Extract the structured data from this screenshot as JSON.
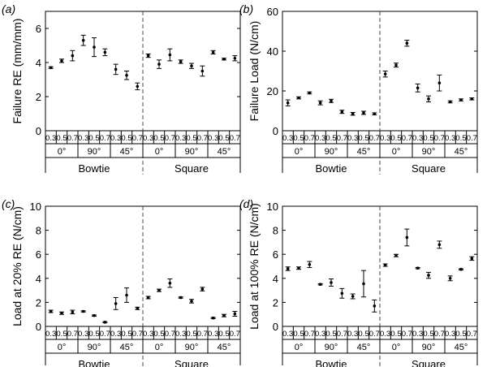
{
  "chart_data": [
    {
      "type": "scatter",
      "panel_label": "(a)",
      "ylabel": "Failure RE (mm/mm)",
      "ylim": [
        0,
        7
      ],
      "yticks": [
        "0",
        "2",
        "4",
        "6"
      ],
      "yticks_values": [
        0,
        2,
        4,
        6
      ],
      "xlabel": "",
      "levels": [
        "0.3",
        "0.5",
        "0.7"
      ],
      "angles": [
        "0°",
        "90°",
        "45°"
      ],
      "groups": [
        "Bowtie",
        "Square"
      ],
      "series": [
        {
          "name": "Bowtie",
          "values": [
            3.7,
            4.1,
            4.4,
            5.3,
            4.9,
            4.6,
            3.6,
            3.25,
            2.6
          ],
          "errors": [
            0.05,
            0.1,
            0.3,
            0.3,
            0.55,
            0.2,
            0.3,
            0.25,
            0.2
          ]
        },
        {
          "name": "Square",
          "values": [
            4.4,
            3.9,
            4.45,
            4.05,
            3.8,
            3.5,
            4.6,
            4.2,
            4.25
          ],
          "errors": [
            0.1,
            0.25,
            0.35,
            0.1,
            0.15,
            0.3,
            0.1,
            0.05,
            0.15
          ]
        }
      ]
    },
    {
      "type": "scatter",
      "panel_label": "(b)",
      "ylabel": "Failure Load (N/cm)",
      "ylim": [
        0,
        60
      ],
      "yticks": [
        "0",
        "20",
        "40",
        "60"
      ],
      "yticks_values": [
        0,
        20,
        40,
        60
      ],
      "xlabel": "",
      "levels": [
        "0.3",
        "0.5",
        "0.7"
      ],
      "angles": [
        "0°",
        "90°",
        "45°"
      ],
      "groups": [
        "Bowtie",
        "Square"
      ],
      "series": [
        {
          "name": "Bowtie",
          "values": [
            14,
            16.5,
            19,
            14,
            15,
            9.5,
            8.5,
            9,
            8.5
          ],
          "errors": [
            1.5,
            0.5,
            0.5,
            1,
            0.8,
            0.8,
            0.7,
            0.8,
            0.5
          ]
        },
        {
          "name": "Square",
          "values": [
            28.5,
            33,
            44,
            21.5,
            16,
            24,
            14.5,
            15.5,
            16
          ],
          "errors": [
            1.5,
            1,
            1.5,
            2,
            1.5,
            4,
            0.5,
            0.5,
            0.5
          ]
        }
      ]
    },
    {
      "type": "scatter",
      "panel_label": "(c)",
      "ylabel": "Load at 20% RE (N/cm)",
      "ylim": [
        0,
        10
      ],
      "yticks": [
        "0",
        "2",
        "4",
        "6",
        "8",
        "10"
      ],
      "yticks_values": [
        0,
        2,
        4,
        6,
        8,
        10
      ],
      "xlabel": "",
      "levels": [
        "0.3",
        "0.5",
        "0.7"
      ],
      "angles": [
        "0°",
        "90°",
        "45°"
      ],
      "groups": [
        "Bowtie",
        "Square"
      ],
      "series": [
        {
          "name": "Bowtie",
          "values": [
            1.25,
            1.1,
            1.2,
            1.25,
            0.9,
            0.35,
            1.9,
            2.6,
            1.5
          ],
          "errors": [
            0.1,
            0.1,
            0.15,
            0.05,
            0.05,
            0.05,
            0.5,
            0.6,
            0.1
          ]
        },
        {
          "name": "Square",
          "values": [
            2.4,
            3.0,
            3.6,
            2.4,
            2.1,
            3.1,
            0.7,
            0.9,
            1.05
          ],
          "errors": [
            0.1,
            0.1,
            0.35,
            0.05,
            0.15,
            0.15,
            0.05,
            0.1,
            0.2
          ]
        }
      ]
    },
    {
      "type": "scatter",
      "panel_label": "(d)",
      "ylabel": "Load at 100% RE (N/cm)",
      "ylim": [
        0,
        10
      ],
      "yticks": [
        "0",
        "2",
        "4",
        "6",
        "8",
        "10"
      ],
      "yticks_values": [
        0,
        2,
        4,
        6,
        8,
        10
      ],
      "xlabel": "",
      "levels": [
        "0.3",
        "0.5",
        "0.7"
      ],
      "angles": [
        "0°",
        "90°",
        "45°"
      ],
      "groups": [
        "Bowtie",
        "Square"
      ],
      "series": [
        {
          "name": "Bowtie",
          "values": [
            4.8,
            4.85,
            5.15,
            3.5,
            3.65,
            2.75,
            2.5,
            3.55,
            1.7
          ],
          "errors": [
            0.15,
            0.1,
            0.25,
            0.05,
            0.3,
            0.4,
            0.2,
            1.1,
            0.5
          ]
        },
        {
          "name": "Square",
          "values": [
            5.1,
            5.9,
            7.4,
            4.85,
            4.25,
            6.8,
            4.0,
            4.75,
            5.65
          ],
          "errors": [
            0.1,
            0.1,
            0.7,
            0.05,
            0.25,
            0.3,
            0.2,
            0.05,
            0.15
          ]
        }
      ]
    }
  ]
}
